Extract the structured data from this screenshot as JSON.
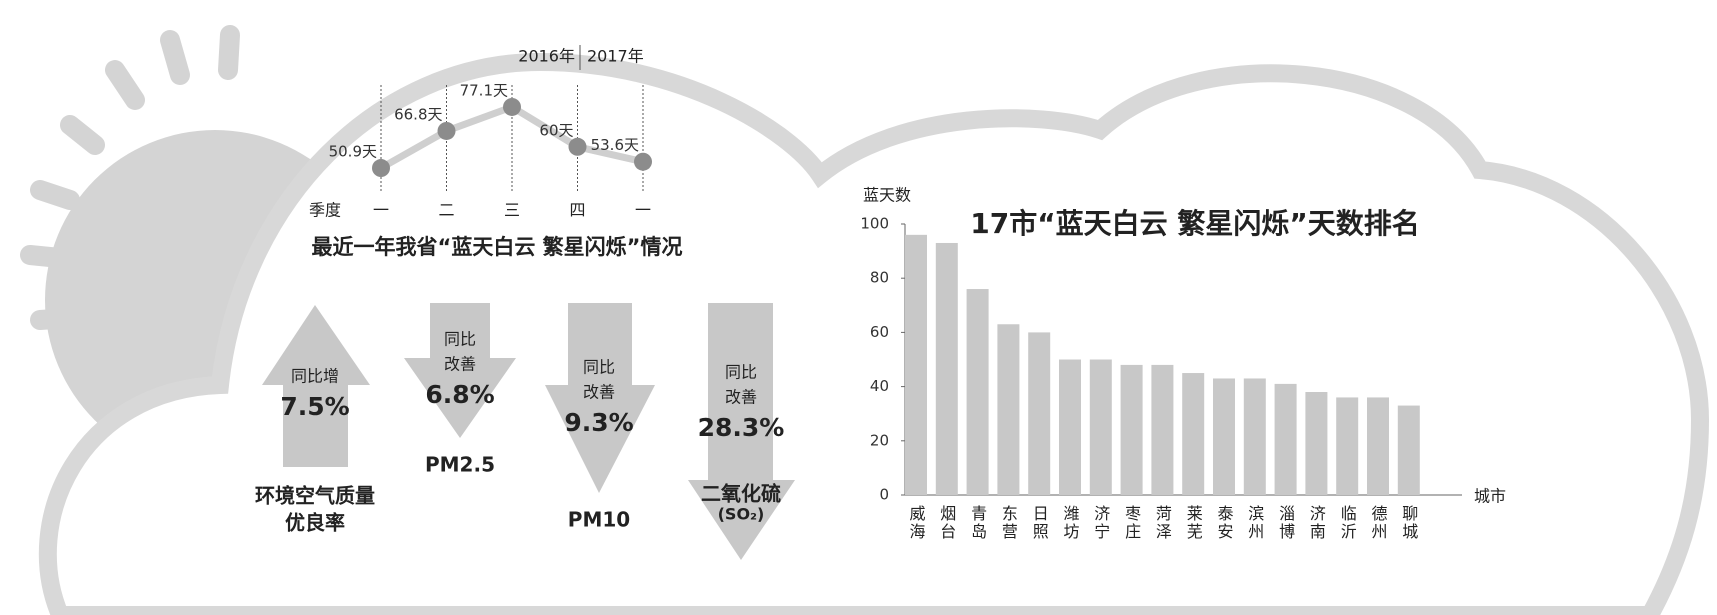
{
  "chart_data": [
    {
      "type": "line",
      "title": "最近一年我省“蓝天白云 繁星闪烁”情况",
      "x_label": "季度",
      "categories": [
        "一",
        "二",
        "三",
        "四",
        "一"
      ],
      "values": [
        50.9,
        66.8,
        77.1,
        60,
        53.6
      ],
      "value_labels": [
        "50.9天",
        "66.8天",
        "77.1天",
        "60天",
        "53.6天"
      ],
      "annotations": [
        "2016年",
        "2017年"
      ],
      "color": "#8c8c8c",
      "line_color": "#cfcfcf"
    },
    {
      "type": "bar",
      "title": "17市“蓝天白云 繁星闪烁”天数排名",
      "y_label": "蓝天数",
      "x_label": "城市",
      "categories": [
        "威海",
        "烟台",
        "青岛",
        "东营",
        "日照",
        "潍坊",
        "济宁",
        "枣庄",
        "菏泽",
        "莱芜",
        "泰安",
        "滨州",
        "淄博",
        "济南",
        "临沂",
        "德州",
        "聊城"
      ],
      "values": [
        96,
        93,
        76,
        63,
        60,
        50,
        50,
        48,
        48,
        45,
        43,
        43,
        41,
        38,
        36,
        36,
        33
      ],
      "color": "#c8c8c8",
      "ylim": [
        0,
        100
      ],
      "yticks": [
        0,
        20,
        40,
        60,
        80,
        100
      ]
    }
  ],
  "indicators": [
    {
      "direction": "up",
      "change_text": [
        "同比增"
      ],
      "change": "7.5%",
      "name": [
        "环境空气质量",
        "优良率"
      ]
    },
    {
      "direction": "down",
      "change_text": [
        "同比",
        "改善"
      ],
      "change": "6.8%",
      "name": [
        "PM2.5"
      ]
    },
    {
      "direction": "down",
      "change_text": [
        "同比",
        "改善"
      ],
      "change": "9.3%",
      "name": [
        "PM10"
      ]
    },
    {
      "direction": "down",
      "change_text": [
        "同比",
        "改善"
      ],
      "change": "28.3%",
      "name": [
        "二氧化硫",
        "(SO₂)"
      ]
    }
  ]
}
